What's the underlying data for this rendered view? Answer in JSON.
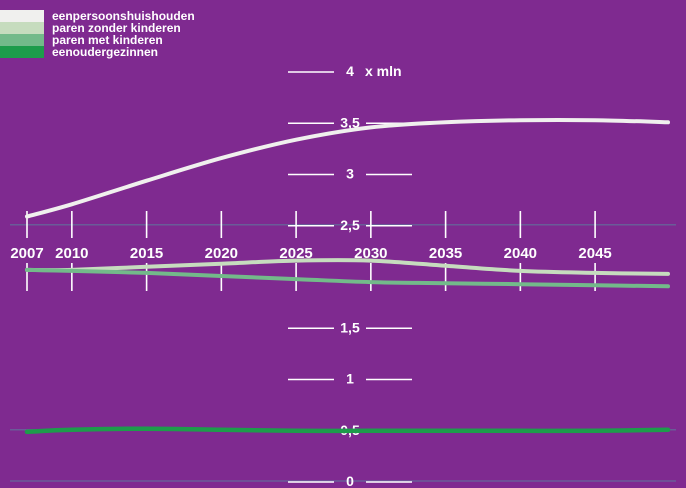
{
  "chart_data": {
    "type": "line",
    "unit": "x mln",
    "ylim": [
      0,
      4
    ],
    "y_ticks": [
      "4",
      "3,5",
      "3",
      "2,5",
      "1,5",
      "1",
      "0,5",
      "0"
    ],
    "x_ticks": [
      "2007",
      "2010",
      "2015",
      "2020",
      "2025",
      "2030",
      "2035",
      "2040",
      "2045"
    ],
    "x": [
      2007,
      2010,
      2015,
      2020,
      2025,
      2030,
      2035,
      2040,
      2045,
      2050
    ],
    "series": [
      {
        "name": "eenpersoonshuishouden",
        "values": [
          2.58,
          2.7,
          2.93,
          3.15,
          3.33,
          3.45,
          3.5,
          3.52,
          3.52,
          3.5
        ]
      },
      {
        "name": "paren zonder kinderen",
        "values": [
          2.06,
          2.06,
          2.09,
          2.12,
          2.15,
          2.15,
          2.1,
          2.05,
          2.03,
          2.02
        ]
      },
      {
        "name": "paren met kinderen",
        "values": [
          2.06,
          2.05,
          2.03,
          2.0,
          1.97,
          1.94,
          1.93,
          1.92,
          1.91,
          1.9
        ]
      },
      {
        "name": "eenoudergezinnen",
        "values": [
          0.48,
          0.5,
          0.51,
          0.5,
          0.49,
          0.49,
          0.49,
          0.49,
          0.49,
          0.5
        ]
      }
    ],
    "colors": {
      "background": "#7f2a90",
      "gridline": "#6a5c98",
      "eenpersoonshuishouden": "#f0f0ee",
      "paren zonder kinderen": "#c6dcbe",
      "paren met kinderen": "#73ba8a",
      "eenoudergezinnen": "#1d9c4b"
    },
    "legend_position": "top-left",
    "grid": true
  }
}
